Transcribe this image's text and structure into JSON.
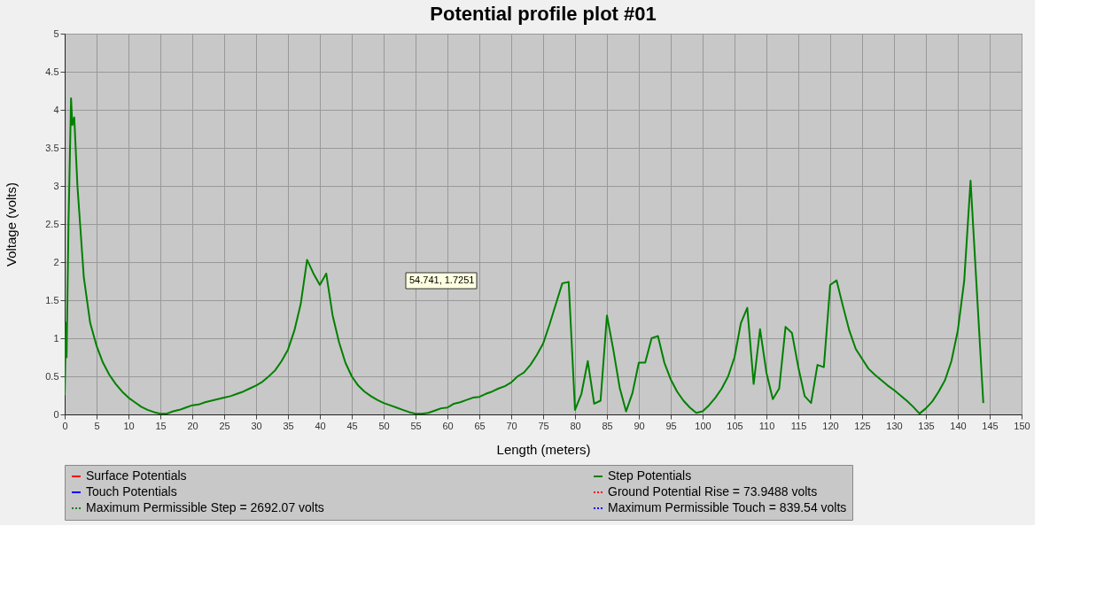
{
  "chart_data": {
    "type": "line",
    "title": "Potential profile plot #01",
    "xlabel": "Length (meters)",
    "ylabel": "Voltage (volts)",
    "series": [
      {
        "name": "Surface Potentials",
        "color": "#ff0000",
        "line_style": "solid"
      },
      {
        "name": "Step Potentials",
        "color": "#008000",
        "line_style": "solid",
        "x": [
          0,
          0.2,
          0.3,
          0.6,
          1,
          1.2,
          1.5,
          2,
          3,
          4,
          5,
          6,
          7,
          8,
          9,
          10,
          11,
          12,
          13,
          14,
          15,
          16,
          17,
          18,
          19,
          20,
          21,
          22,
          23,
          24,
          25,
          26,
          27,
          28,
          29,
          30,
          31,
          32,
          33,
          34,
          35,
          36,
          37,
          38,
          39,
          40,
          41,
          42,
          43,
          44,
          45,
          46,
          47,
          48,
          49,
          50,
          51,
          52,
          53,
          54,
          55,
          56,
          57,
          58,
          59,
          60,
          61,
          62,
          63,
          64,
          65,
          66,
          67,
          68,
          69,
          70,
          71,
          72,
          73,
          74,
          75,
          76,
          77,
          78,
          79,
          80,
          81,
          82,
          83,
          84,
          85,
          86,
          87,
          88,
          89,
          90,
          91,
          92,
          93,
          94,
          95,
          96,
          97,
          98,
          99,
          100,
          101,
          102,
          103,
          104,
          105,
          106,
          107,
          108,
          109,
          110,
          111,
          112,
          113,
          114,
          115,
          116,
          117,
          118,
          119,
          120,
          121,
          122,
          123,
          124,
          125,
          126,
          127,
          128,
          129,
          130,
          131,
          132,
          133,
          134,
          135,
          136,
          137,
          138,
          139,
          140,
          141,
          142,
          143,
          144
        ],
        "values": [
          0.25,
          1.2,
          0.75,
          2.5,
          4.15,
          3.8,
          3.9,
          3.0,
          1.8,
          1.2,
          0.9,
          0.68,
          0.52,
          0.4,
          0.3,
          0.22,
          0.16,
          0.1,
          0.06,
          0.03,
          0.01,
          0.01,
          0.04,
          0.06,
          0.09,
          0.12,
          0.13,
          0.16,
          0.18,
          0.2,
          0.22,
          0.24,
          0.27,
          0.3,
          0.34,
          0.38,
          0.43,
          0.5,
          0.58,
          0.7,
          0.85,
          1.1,
          1.45,
          2.03,
          1.85,
          1.7,
          1.85,
          1.3,
          0.95,
          0.68,
          0.5,
          0.38,
          0.3,
          0.24,
          0.19,
          0.15,
          0.12,
          0.09,
          0.06,
          0.03,
          0.01,
          0.01,
          0.02,
          0.05,
          0.08,
          0.09,
          0.14,
          0.16,
          0.19,
          0.22,
          0.23,
          0.27,
          0.3,
          0.34,
          0.37,
          0.42,
          0.5,
          0.55,
          0.65,
          0.78,
          0.93,
          1.18,
          1.45,
          1.72,
          1.74,
          0.06,
          0.27,
          0.7,
          0.14,
          0.18,
          1.3,
          0.85,
          0.35,
          0.04,
          0.28,
          0.68,
          0.68,
          1.0,
          1.03,
          0.68,
          0.46,
          0.3,
          0.18,
          0.09,
          0.02,
          0.04,
          0.12,
          0.22,
          0.34,
          0.5,
          0.75,
          1.2,
          1.4,
          0.4,
          1.12,
          0.55,
          0.2,
          0.34,
          1.15,
          1.07,
          0.62,
          0.24,
          0.15,
          0.65,
          0.62,
          1.7,
          1.76,
          1.42,
          1.1,
          0.86,
          0.73,
          0.6,
          0.52,
          0.45,
          0.38,
          0.32,
          0.25,
          0.18,
          0.1,
          0.01,
          0.08,
          0.17,
          0.3,
          0.45,
          0.7,
          1.1,
          1.75,
          3.07,
          1.6,
          0.15
        ]
      },
      {
        "name": "Touch Potentials",
        "color": "#0000ff",
        "line_style": "solid"
      },
      {
        "name": "Ground Potential Rise = 73.9488 volts",
        "color": "#ff0000",
        "line_style": "dotted"
      },
      {
        "name": "Maximum Permissible Step = 2692.07 volts",
        "color": "#008000",
        "line_style": "dotted"
      },
      {
        "name": "Maximum Permissible Touch = 839.54 volts",
        "color": "#0000ff",
        "line_style": "dotted"
      }
    ],
    "annotations": [
      "54.741, 1.7251"
    ],
    "xlim": [
      0,
      150
    ],
    "xticks": [
      0,
      5,
      10,
      15,
      20,
      25,
      30,
      35,
      40,
      45,
      50,
      55,
      60,
      65,
      70,
      75,
      80,
      85,
      90,
      95,
      100,
      105,
      110,
      115,
      120,
      125,
      130,
      135,
      140,
      145,
      150
    ],
    "ylim": [
      0,
      5
    ],
    "yticks": [
      0,
      0.5,
      1,
      1.5,
      2,
      2.5,
      3,
      3.5,
      4,
      4.5,
      5
    ],
    "grid": true,
    "legend": "bottom",
    "marker": "none"
  }
}
